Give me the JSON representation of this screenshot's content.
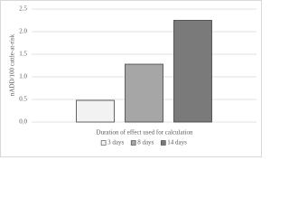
{
  "chart_data": {
    "type": "bar",
    "y_label": "nADD/100 cattle-at-risk",
    "x_label": "Duration of effect used for calculation",
    "categories": [
      null
    ],
    "series": [
      {
        "name": "3 days",
        "color": "#f2f2f2",
        "values": [
          0.48
        ]
      },
      {
        "name": "8 days",
        "color": "#a6a6a6",
        "values": [
          1.28
        ]
      },
      {
        "name": "14 days",
        "color": "#7a7a7a",
        "values": [
          2.25
        ]
      }
    ],
    "ylim": [
      0,
      2.5
    ],
    "yticks": [
      {
        "value": 0,
        "label": "0.0"
      },
      0.5,
      {
        "value": 1,
        "label": "1.0"
      },
      1.5,
      {
        "value": 2,
        "label": "2.0"
      },
      2.5
    ],
    "grid": true,
    "legend": "bottom"
  }
}
